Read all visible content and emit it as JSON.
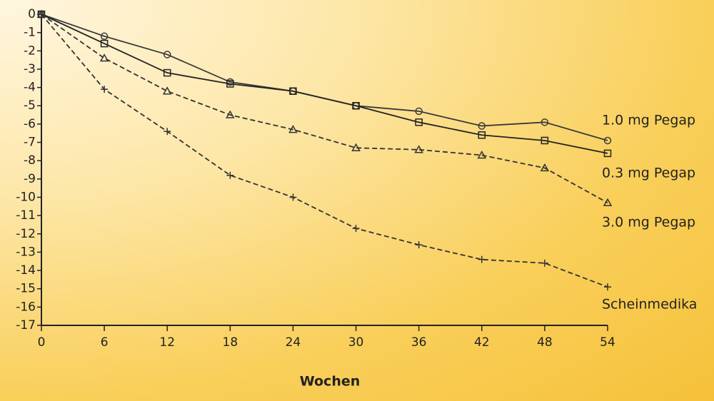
{
  "chart_data": {
    "type": "line",
    "x_label": "Wochen",
    "x": [
      0,
      6,
      12,
      18,
      24,
      30,
      36,
      42,
      48,
      54
    ],
    "xlim": [
      0,
      54
    ],
    "xticks": [
      0,
      6,
      12,
      18,
      24,
      30,
      36,
      42,
      48,
      54
    ],
    "ylim": [
      -17,
      0
    ],
    "yticks": [
      0,
      -1,
      -2,
      -3,
      -4,
      -5,
      -6,
      -7,
      -8,
      -9,
      -10,
      -11,
      -12,
      -13,
      -14,
      -15,
      -16,
      -17
    ],
    "series": [
      {
        "name": "1.0 mg Pegap",
        "color": "#3a3a3a",
        "marker": "circle",
        "dash": false,
        "values": [
          0,
          -1.2,
          -2.2,
          -3.7,
          -4.2,
          -5.0,
          -5.3,
          -6.1,
          -5.9,
          -6.9
        ]
      },
      {
        "name": "0.3 mg Pegap",
        "color": "#222222",
        "marker": "square",
        "dash": false,
        "values": [
          0,
          -1.6,
          -3.2,
          -3.8,
          -4.2,
          -5.0,
          -5.9,
          -6.6,
          -6.9,
          -7.6
        ]
      },
      {
        "name": "3.0 mg Pegap",
        "color": "#333333",
        "marker": "triangle",
        "dash": true,
        "values": [
          0,
          -2.4,
          -4.2,
          -5.5,
          -6.3,
          -7.3,
          -7.4,
          -7.7,
          -8.4,
          -10.3
        ]
      },
      {
        "name": "Scheinmedika",
        "color": "#333333",
        "marker": "plus",
        "dash": true,
        "values": [
          0,
          -4.1,
          -6.4,
          -8.8,
          -10.0,
          -11.7,
          -12.6,
          -13.4,
          -13.6,
          -14.9
        ]
      }
    ]
  }
}
